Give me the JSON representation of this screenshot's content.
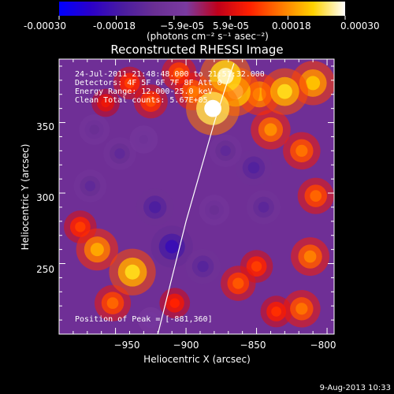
{
  "chart_data": {
    "type": "heatmap",
    "title": "Reconstructed RHESSI Image",
    "xlabel": "Heliocentric X (arcsec)",
    "ylabel": "Heliocentric Y (arcsec)",
    "xlim": [
      -990,
      -795
    ],
    "ylim": [
      200,
      395
    ],
    "x_ticks": [
      -950,
      -900,
      -850,
      -800
    ],
    "y_ticks": [
      250,
      300,
      350
    ],
    "x_tick_labels": [
      "−950",
      "−900",
      "−850",
      "−800"
    ],
    "y_tick_labels": [
      "250",
      "300",
      "350"
    ],
    "colorbar": {
      "range": [
        -0.0003,
        0.0003
      ],
      "ticks": [
        -0.0003,
        -0.00018,
        -5.9e-05,
        5.9e-05,
        0.00018,
        0.0003
      ],
      "tick_labels": [
        "-0.00030",
        "-0.00018",
        "−5.9e-05",
        "5.9e-05",
        "0.00018",
        "0.00030"
      ],
      "units_label": "(photons cm⁻² s⁻¹ asec⁻²)",
      "colormap": [
        "#0000ff",
        "#2b00c8",
        "#4a1ca0",
        "#6a2f94",
        "#7a3aa0",
        "#c0001a",
        "#ff2000",
        "#ff7a00",
        "#ffd200",
        "#ffffff"
      ]
    },
    "limb_curve": {
      "x": [
        -920,
        -910,
        -900,
        -890,
        -880,
        -872,
        -866
      ],
      "y": [
        200,
        240,
        280,
        315,
        350,
        375,
        392
      ]
    },
    "sources": [
      {
        "x": -881,
        "y": 360,
        "value": 0.0003
      },
      {
        "x": -872,
        "y": 383,
        "value": 0.00028
      },
      {
        "x": -865,
        "y": 372,
        "value": 0.00026
      },
      {
        "x": -848,
        "y": 370,
        "value": 0.0002
      },
      {
        "x": -830,
        "y": 372,
        "value": 0.00024
      },
      {
        "x": -810,
        "y": 378,
        "value": 0.00022
      },
      {
        "x": -840,
        "y": 345,
        "value": 0.00018
      },
      {
        "x": -818,
        "y": 330,
        "value": 0.00016
      },
      {
        "x": -895,
        "y": 372,
        "value": 0.00016
      },
      {
        "x": -905,
        "y": 385,
        "value": 0.00014
      },
      {
        "x": -925,
        "y": 365,
        "value": 0.00013
      },
      {
        "x": -940,
        "y": 378,
        "value": 0.00012
      },
      {
        "x": -957,
        "y": 364,
        "value": 8e-05
      },
      {
        "x": -808,
        "y": 298,
        "value": 0.00015
      },
      {
        "x": -812,
        "y": 255,
        "value": 0.00017
      },
      {
        "x": -818,
        "y": 218,
        "value": 0.00016
      },
      {
        "x": -850,
        "y": 248,
        "value": 0.00012
      },
      {
        "x": -863,
        "y": 236,
        "value": 0.00014
      },
      {
        "x": -836,
        "y": 216,
        "value": 0.00011
      },
      {
        "x": -938,
        "y": 244,
        "value": 0.00024
      },
      {
        "x": -963,
        "y": 260,
        "value": 0.0002
      },
      {
        "x": -952,
        "y": 222,
        "value": 0.00015
      },
      {
        "x": -975,
        "y": 276,
        "value": 0.00012
      },
      {
        "x": -908,
        "y": 222,
        "value": 0.0001
      },
      {
        "x": -947,
        "y": 328,
        "value": -0.00012
      },
      {
        "x": -922,
        "y": 290,
        "value": -0.00016
      },
      {
        "x": -910,
        "y": 262,
        "value": -0.0002
      },
      {
        "x": -888,
        "y": 248,
        "value": -0.00014
      },
      {
        "x": -968,
        "y": 305,
        "value": -0.00012
      },
      {
        "x": -872,
        "y": 330,
        "value": -0.00012
      },
      {
        "x": -852,
        "y": 318,
        "value": -0.00015
      },
      {
        "x": -845,
        "y": 290,
        "value": -0.00013
      },
      {
        "x": -880,
        "y": 288,
        "value": -0.0001
      },
      {
        "x": -965,
        "y": 345,
        "value": -0.0001
      },
      {
        "x": -930,
        "y": 338,
        "value": -8e-05
      },
      {
        "x": -925,
        "y": 210,
        "value": -6e-05
      }
    ],
    "info_lines": [
      "24-Jul-2011 21:48:48.000 to 21:51:32.000",
      "Detectors: 4F 5F 6F 7F 8F Att 0",
      "Energy Range: 12.000-25.0 keV",
      "Clean    Total counts: 5.67E+05"
    ],
    "peak_label": "Position of Peak = [-881,360]"
  },
  "footer": {
    "date": "9-Aug-2013 10:33"
  }
}
